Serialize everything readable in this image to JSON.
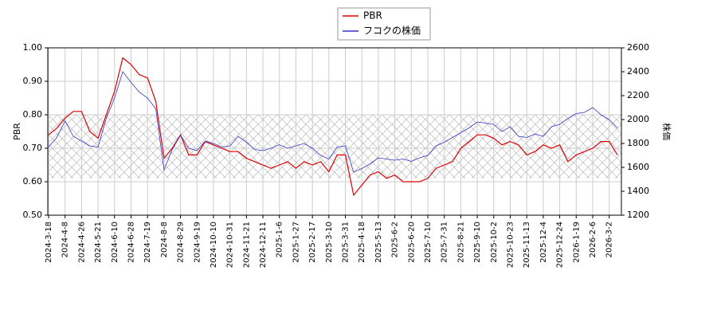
{
  "chart_data": {
    "type": "line",
    "categories": [
      "2024-3-18",
      null,
      "2024-4-8",
      null,
      "2024-4-26",
      null,
      "2024-5-21",
      null,
      "2024-6-10",
      null,
      "2024-6-28",
      null,
      "2024-7-19",
      null,
      "2024-8-8",
      null,
      "2024-8-29",
      null,
      "2024-9-19",
      null,
      "2024-10-10",
      null,
      "2024-10-31",
      null,
      "2024-11-21",
      null,
      "2024-12-11",
      null,
      "2025-1-6",
      null,
      "2025-1-27",
      null,
      "2025-2-17",
      null,
      "2025-3-10",
      null,
      "2025-3-31",
      null,
      "2025-4-18",
      null,
      "2025-5-13",
      null,
      "2025-6-2",
      null,
      "2025-6-20",
      null,
      "2025-7-10",
      null,
      "2025-7-31",
      null,
      "2025-8-21",
      null,
      "2025-9-10",
      null,
      "2025-10-2",
      null,
      "2025-10-23",
      null,
      "2025-11-13",
      null,
      "2025-12-4",
      null,
      "2025-12-24",
      null,
      "2026-1-19",
      null,
      "2026-2-6",
      null,
      "2026-3-2",
      null
    ],
    "series": [
      {
        "name": "PBR",
        "color": "#dd0000",
        "axis": "y",
        "values": [
          0.74,
          0.76,
          0.79,
          0.81,
          0.81,
          0.75,
          0.73,
          0.8,
          0.87,
          0.97,
          0.95,
          0.92,
          0.91,
          0.84,
          0.67,
          0.7,
          0.74,
          0.68,
          0.68,
          0.72,
          0.71,
          0.7,
          0.69,
          0.69,
          0.67,
          0.66,
          0.65,
          0.64,
          0.65,
          0.66,
          0.64,
          0.66,
          0.65,
          0.66,
          0.63,
          0.68,
          0.68,
          0.56,
          0.59,
          0.62,
          0.63,
          0.61,
          0.62,
          0.6,
          0.6,
          0.6,
          0.61,
          0.64,
          0.65,
          0.66,
          0.7,
          0.72,
          0.74,
          0.74,
          0.73,
          0.71,
          0.72,
          0.71,
          0.68,
          0.69,
          0.71,
          0.7,
          0.71,
          0.66,
          0.68,
          0.69,
          0.7,
          0.72,
          0.72,
          0.68
        ]
      },
      {
        "name": "フコクの株価",
        "color": "#3333cc",
        "axis": "y2",
        "values": [
          1770,
          1850,
          1990,
          1860,
          1820,
          1780,
          1770,
          2010,
          2180,
          2400,
          2310,
          2230,
          2180,
          2090,
          1580,
          1750,
          1870,
          1760,
          1740,
          1820,
          1800,
          1770,
          1780,
          1860,
          1810,
          1750,
          1740,
          1760,
          1790,
          1760,
          1780,
          1800,
          1760,
          1700,
          1670,
          1770,
          1780,
          1560,
          1590,
          1630,
          1680,
          1670,
          1660,
          1670,
          1650,
          1680,
          1700,
          1780,
          1810,
          1850,
          1890,
          1930,
          1980,
          1970,
          1960,
          1900,
          1940,
          1860,
          1850,
          1880,
          1860,
          1940,
          1960,
          2010,
          2050,
          2060,
          2100,
          2040,
          2000,
          1930
        ]
      }
    ],
    "ylabel": "PBR",
    "y2label": "株価",
    "ylim": [
      0.5,
      1.0
    ],
    "yticks": [
      {
        "value": 0.5,
        "label": "0.50"
      },
      {
        "value": 0.6,
        "label": "0.60"
      },
      {
        "value": 0.7,
        "label": "0.70"
      },
      {
        "value": 0.8,
        "label": "0.80"
      },
      {
        "value": 0.9,
        "label": "0.90"
      },
      {
        "value": 1.0,
        "label": "1.00"
      }
    ],
    "y2lim": [
      1200,
      2600
    ],
    "y2ticks": [
      1200,
      1400,
      1600,
      1800,
      2000,
      2200,
      2400,
      2600
    ],
    "band": [
      0.61,
      0.8
    ],
    "grid": true,
    "legend": "top"
  }
}
